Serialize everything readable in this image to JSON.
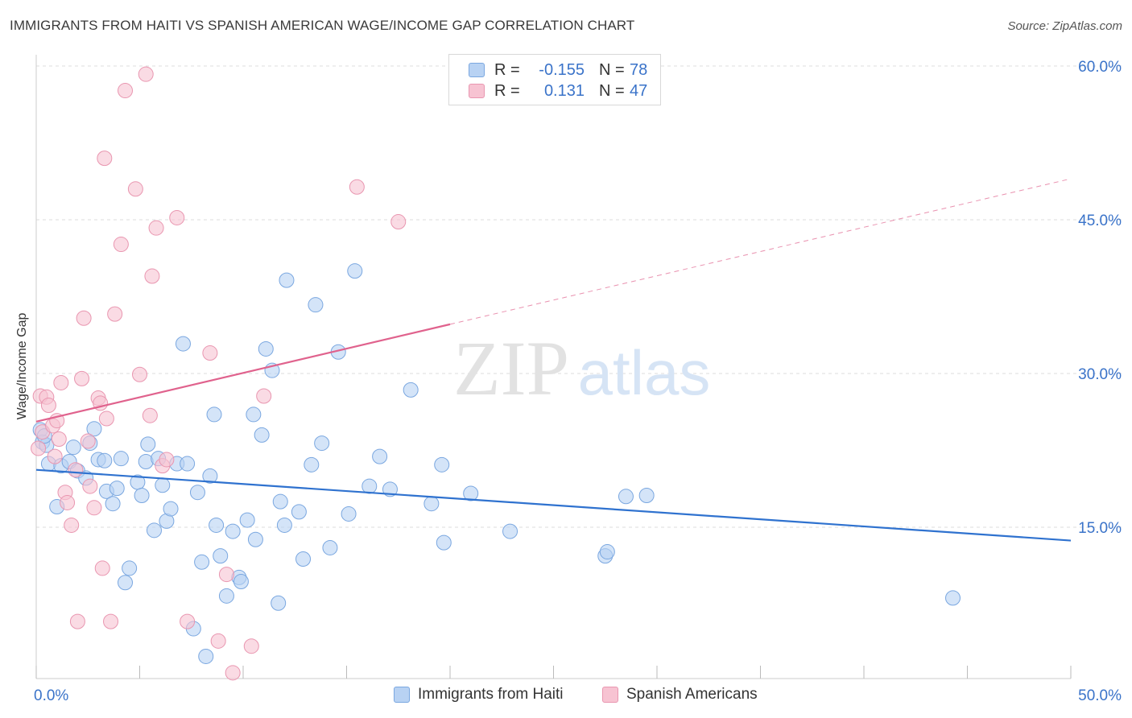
{
  "title": "IMMIGRANTS FROM HAITI VS SPANISH AMERICAN WAGE/INCOME GAP CORRELATION CHART",
  "source": "Source: ZipAtlas.com",
  "watermark": {
    "zip": "ZIP",
    "atlas": "atlas"
  },
  "legend": {
    "rows": [
      {
        "r_label": "R =",
        "r_value": "-0.155",
        "n_label": "N =",
        "n_value": "78"
      },
      {
        "r_label": "R =",
        "r_value": "0.131",
        "n_label": "N =",
        "n_value": "47"
      }
    ]
  },
  "bottom_legend": {
    "series1": "Immigrants from Haiti",
    "series2": "Spanish Americans"
  },
  "colors": {
    "blue_fill": "#b8d2f3",
    "blue_stroke": "#7aa7e0",
    "blue_line": "#2f72cf",
    "pink_fill": "#f7c3d2",
    "pink_stroke": "#e996b0",
    "pink_line": "#e0628d",
    "tick_label": "#3a73c9",
    "grid": "#dddddd"
  },
  "chart_data": {
    "type": "scatter",
    "title": "IMMIGRANTS FROM HAITI VS SPANISH AMERICAN WAGE/INCOME GAP CORRELATION CHART",
    "xlabel": "",
    "ylabel": "Wage/Income Gap",
    "xlim": [
      0,
      50
    ],
    "ylim": [
      0,
      62
    ],
    "x_tick_labels": [
      "0.0%",
      "50.0%"
    ],
    "y_ticks": [
      15,
      30,
      45,
      60
    ],
    "y_tick_labels": [
      "15.0%",
      "30.0%",
      "45.0%",
      "60.0%"
    ],
    "grid": true,
    "legend_position": "top-center",
    "series": [
      {
        "name": "Immigrants from Haiti",
        "color": "#b8d2f3",
        "r": -0.155,
        "n": 78,
        "trend": {
          "x": [
            0,
            50
          ],
          "y": [
            20.6,
            13.7
          ],
          "dashed_from": null
        },
        "points": [
          [
            0.2,
            24.5
          ],
          [
            0.3,
            23.3
          ],
          [
            0.5,
            23.0
          ],
          [
            0.6,
            21.2
          ],
          [
            1.0,
            17.0
          ],
          [
            1.2,
            21.0
          ],
          [
            1.6,
            21.4
          ],
          [
            1.8,
            22.8
          ],
          [
            2.0,
            20.5
          ],
          [
            2.4,
            19.8
          ],
          [
            2.6,
            23.2
          ],
          [
            2.8,
            24.6
          ],
          [
            3.0,
            21.6
          ],
          [
            3.3,
            21.5
          ],
          [
            3.4,
            18.5
          ],
          [
            3.7,
            17.3
          ],
          [
            3.9,
            18.8
          ],
          [
            4.1,
            21.7
          ],
          [
            4.3,
            9.6
          ],
          [
            4.5,
            11.0
          ],
          [
            4.9,
            19.4
          ],
          [
            5.1,
            18.1
          ],
          [
            5.3,
            21.4
          ],
          [
            5.4,
            23.1
          ],
          [
            5.7,
            14.7
          ],
          [
            5.9,
            21.7
          ],
          [
            6.1,
            19.1
          ],
          [
            6.3,
            15.6
          ],
          [
            6.5,
            16.8
          ],
          [
            6.8,
            21.2
          ],
          [
            7.1,
            32.9
          ],
          [
            7.3,
            21.2
          ],
          [
            7.6,
            5.1
          ],
          [
            7.8,
            18.4
          ],
          [
            8.0,
            11.6
          ],
          [
            8.2,
            2.4
          ],
          [
            8.4,
            20.0
          ],
          [
            8.6,
            26.0
          ],
          [
            8.7,
            15.2
          ],
          [
            8.9,
            12.2
          ],
          [
            9.2,
            8.3
          ],
          [
            9.5,
            14.6
          ],
          [
            9.8,
            10.1
          ],
          [
            9.9,
            9.7
          ],
          [
            10.2,
            15.7
          ],
          [
            10.5,
            26.0
          ],
          [
            10.6,
            13.8
          ],
          [
            10.9,
            24.0
          ],
          [
            11.1,
            32.4
          ],
          [
            11.4,
            30.3
          ],
          [
            11.7,
            7.6
          ],
          [
            11.8,
            17.5
          ],
          [
            12.0,
            15.2
          ],
          [
            12.1,
            39.1
          ],
          [
            12.7,
            16.5
          ],
          [
            12.9,
            11.9
          ],
          [
            13.3,
            21.1
          ],
          [
            13.5,
            36.7
          ],
          [
            13.8,
            23.2
          ],
          [
            14.2,
            13.0
          ],
          [
            14.6,
            32.1
          ],
          [
            15.1,
            16.3
          ],
          [
            15.4,
            40.0
          ],
          [
            16.1,
            19.0
          ],
          [
            16.6,
            21.9
          ],
          [
            17.1,
            18.7
          ],
          [
            18.1,
            28.4
          ],
          [
            19.1,
            17.3
          ],
          [
            19.6,
            21.1
          ],
          [
            19.7,
            13.5
          ],
          [
            21.0,
            18.3
          ],
          [
            22.9,
            14.6
          ],
          [
            27.5,
            12.2
          ],
          [
            27.6,
            12.6
          ],
          [
            28.5,
            18.0
          ],
          [
            29.5,
            18.1
          ],
          [
            44.3,
            8.1
          ],
          [
            0.4,
            23.9
          ]
        ]
      },
      {
        "name": "Spanish Americans",
        "color": "#f7c3d2",
        "r": 0.131,
        "n": 47,
        "trend": {
          "x": [
            0,
            20
          ],
          "y": [
            25.3,
            34.8
          ],
          "dashed_x": [
            20,
            50
          ],
          "dashed_y": [
            34.8,
            49.0
          ]
        },
        "points": [
          [
            0.1,
            22.7
          ],
          [
            0.2,
            27.8
          ],
          [
            0.3,
            24.3
          ],
          [
            0.5,
            27.7
          ],
          [
            0.6,
            26.9
          ],
          [
            0.8,
            24.9
          ],
          [
            0.9,
            21.9
          ],
          [
            1.0,
            25.4
          ],
          [
            1.1,
            23.6
          ],
          [
            1.2,
            29.1
          ],
          [
            1.4,
            18.4
          ],
          [
            1.5,
            17.4
          ],
          [
            1.7,
            15.2
          ],
          [
            1.9,
            20.6
          ],
          [
            2.0,
            5.8
          ],
          [
            2.2,
            29.5
          ],
          [
            2.3,
            35.4
          ],
          [
            2.5,
            23.4
          ],
          [
            2.6,
            19.0
          ],
          [
            2.8,
            16.9
          ],
          [
            3.0,
            27.6
          ],
          [
            3.1,
            27.1
          ],
          [
            3.2,
            11.0
          ],
          [
            3.3,
            51.0
          ],
          [
            3.4,
            25.6
          ],
          [
            3.6,
            5.8
          ],
          [
            3.8,
            35.8
          ],
          [
            4.1,
            42.6
          ],
          [
            4.3,
            57.6
          ],
          [
            4.8,
            48.0
          ],
          [
            5.0,
            29.9
          ],
          [
            5.3,
            59.2
          ],
          [
            5.5,
            25.9
          ],
          [
            5.6,
            39.5
          ],
          [
            5.8,
            44.2
          ],
          [
            6.1,
            21.0
          ],
          [
            6.3,
            21.6
          ],
          [
            6.8,
            45.2
          ],
          [
            7.3,
            5.8
          ],
          [
            8.4,
            32.0
          ],
          [
            8.8,
            3.9
          ],
          [
            9.2,
            10.4
          ],
          [
            9.5,
            0.8
          ],
          [
            10.4,
            3.4
          ],
          [
            11.0,
            27.8
          ],
          [
            15.5,
            48.2
          ],
          [
            17.5,
            44.8
          ]
        ]
      }
    ]
  }
}
